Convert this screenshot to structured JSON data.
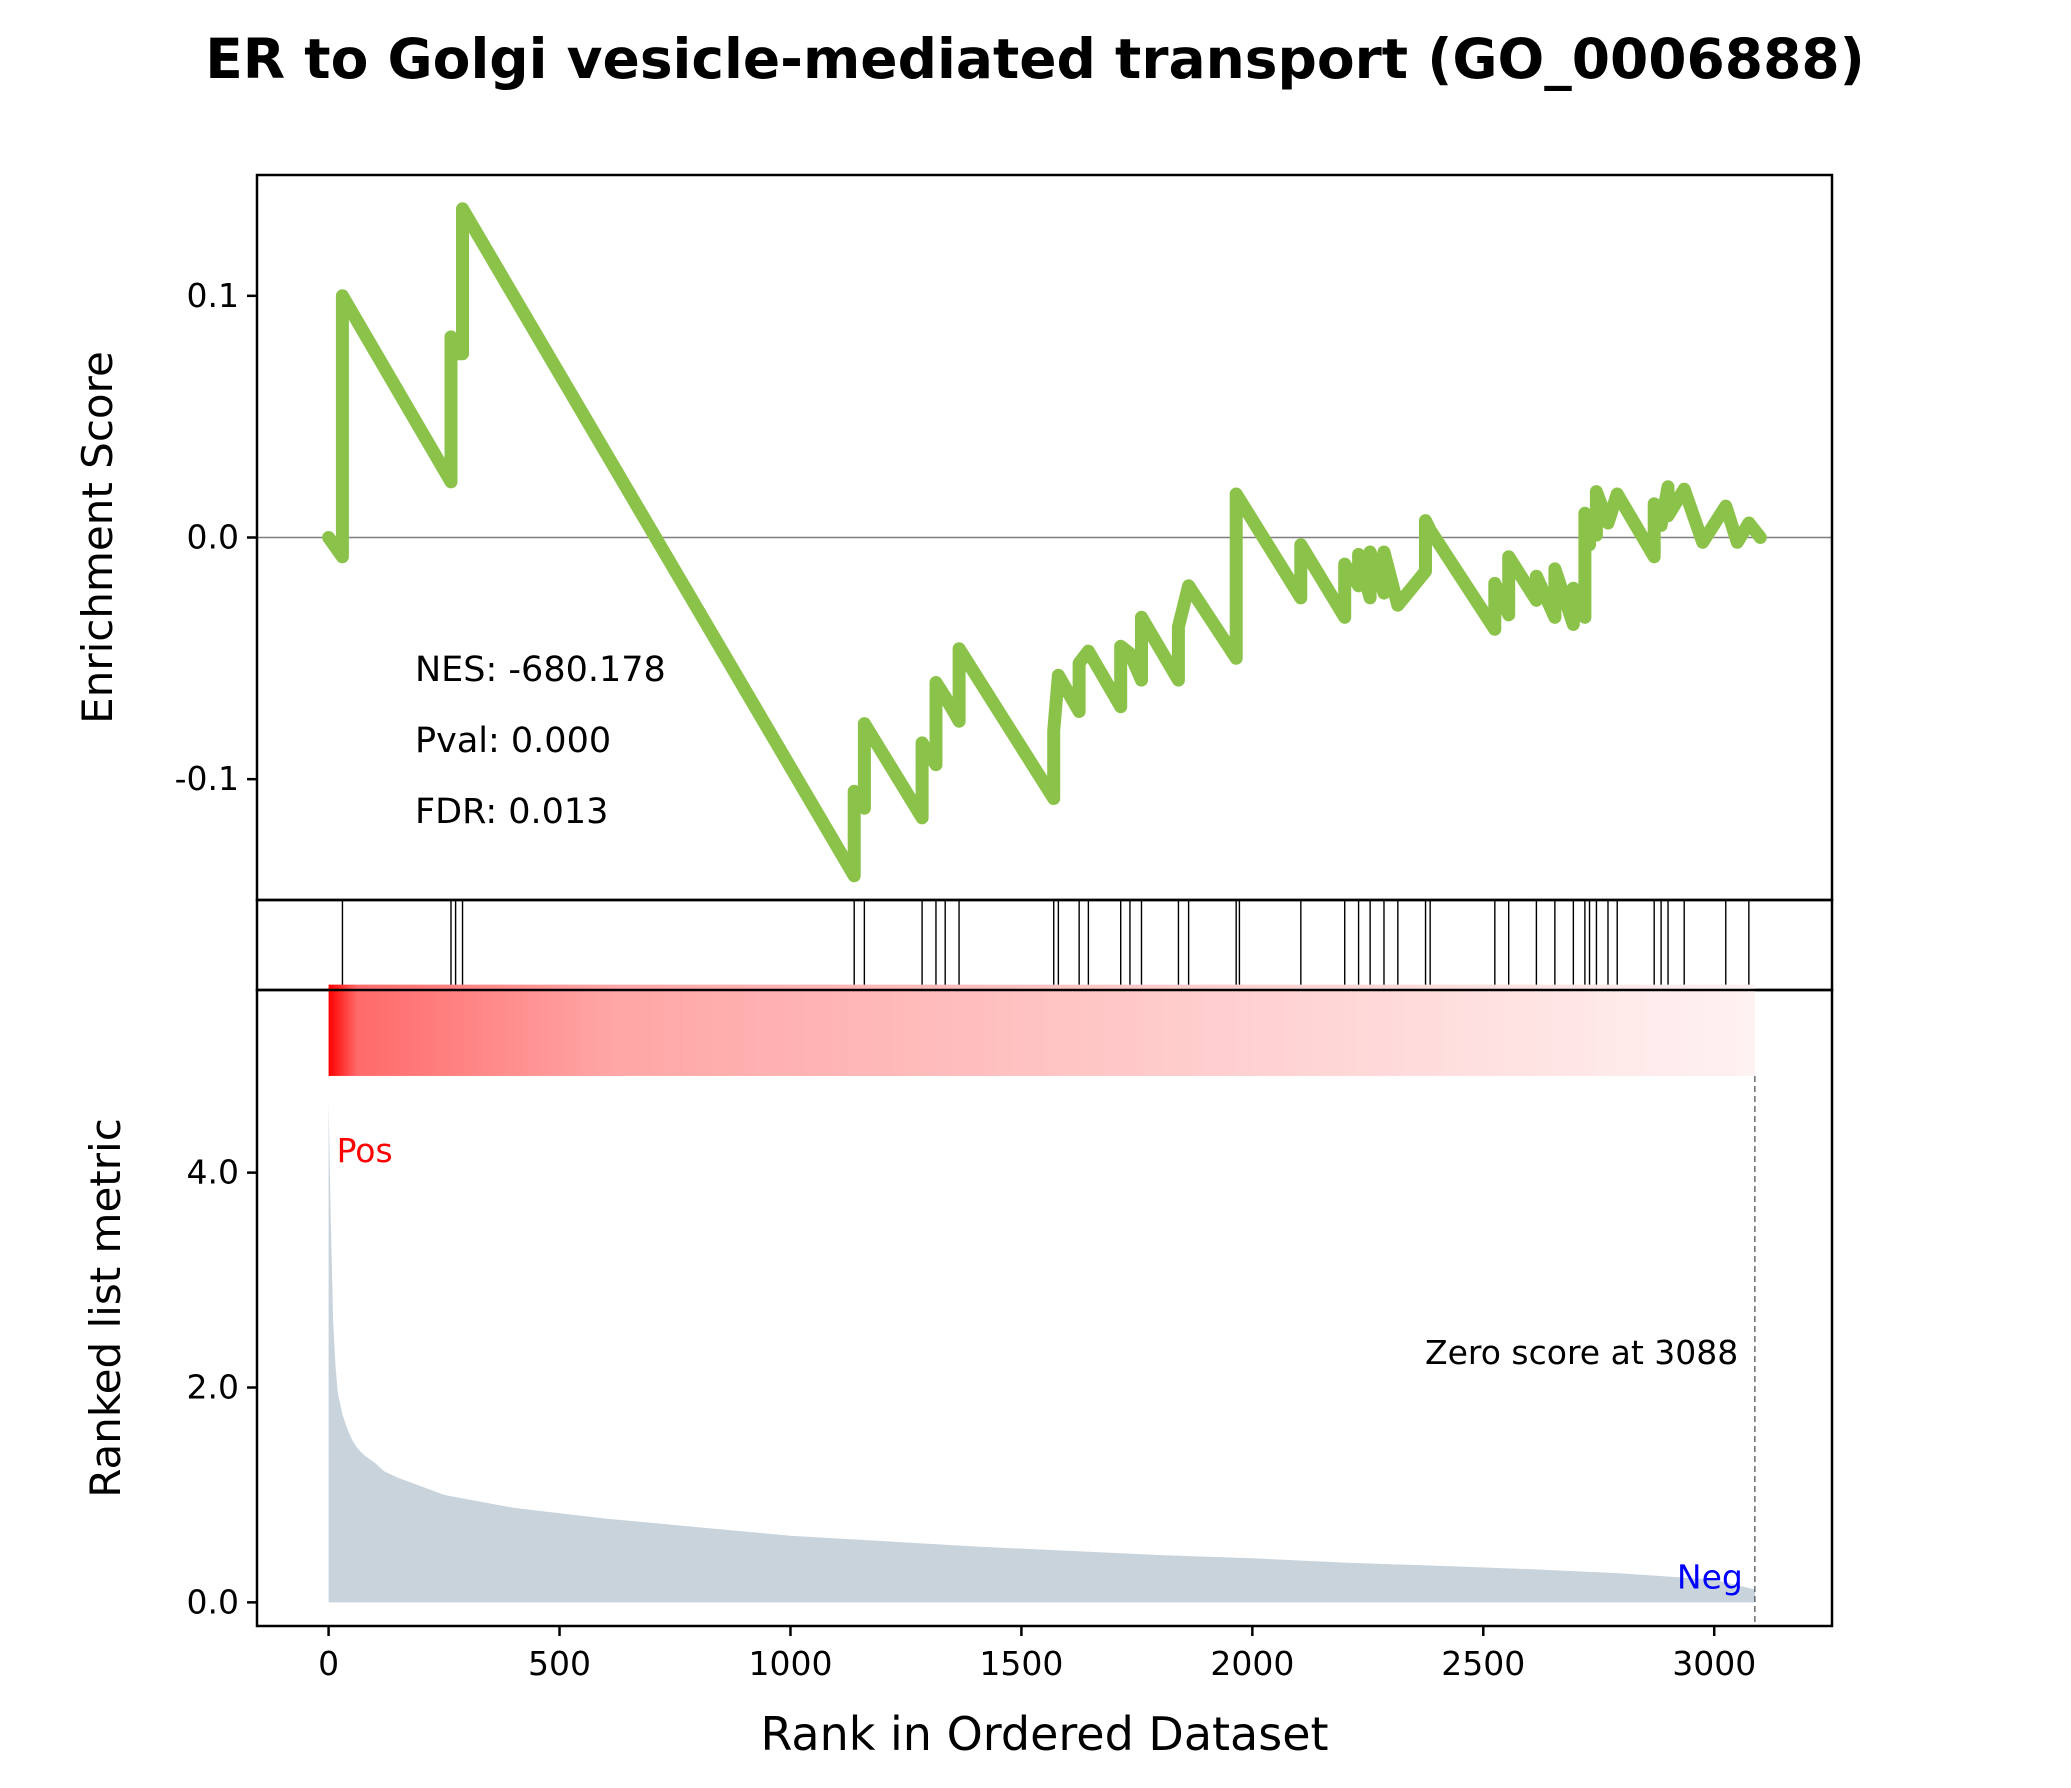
{
  "chart_data": {
    "type": "line",
    "title": "ER to Golgi vesicle-mediated transport (GO_0006888)",
    "xlabel": "Rank in Ordered Dataset",
    "xlim": [
      -155,
      3255
    ],
    "x_ticks": [
      0,
      500,
      1000,
      1500,
      2000,
      2500,
      3000
    ],
    "enrichment_panel": {
      "ylabel": "Enrichment Score",
      "ylim": [
        -0.15,
        0.15
      ],
      "y_ticks": [
        {
          "value": 0.1,
          "label": "0.1"
        },
        {
          "value": 0.0,
          "label": "0.0"
        },
        {
          "value": -0.1,
          "label": "-0.1"
        }
      ],
      "line_color": "#8bc34a",
      "zero_line_color": "#7f7f7f",
      "stats": [
        "NES: -680.178",
        "Pval: 0.000",
        "FDR: 0.013"
      ],
      "series": [
        {
          "x": [
            0,
            30,
            30,
            265,
            265,
            275,
            275,
            290,
            290,
            1138,
            1138,
            1160,
            1160,
            1285,
            1285,
            1315,
            1315,
            1335,
            1335,
            1365,
            1365,
            1570,
            1570,
            1580,
            1580,
            1625,
            1625,
            1645,
            1645,
            1715,
            1715,
            1735,
            1735,
            1760,
            1760,
            1840,
            1840,
            1862,
            1862,
            1965,
            1965,
            2105,
            2105,
            2200,
            2200,
            2230,
            2230,
            2255,
            2255,
            2285,
            2285,
            2315,
            2315,
            2375,
            2375,
            2385,
            2385,
            2525,
            2525,
            2555,
            2555,
            2615,
            2615,
            2655,
            2655,
            2695,
            2695,
            2720,
            2720,
            2730,
            2730,
            2745,
            2745,
            2770,
            2770,
            2790,
            2790,
            2870,
            2870,
            2885,
            2885,
            2900,
            2900,
            2935,
            2935,
            2975,
            2975,
            3025,
            3025,
            3050,
            3050,
            3075,
            3075,
            3100
          ],
          "y": [
            0,
            -0.008,
            0.1,
            0.023,
            0.083,
            0.08,
            0.076,
            0.076,
            0.136,
            -0.14,
            -0.105,
            -0.112,
            -0.077,
            -0.116,
            -0.085,
            -0.094,
            -0.06,
            -0.066,
            -0.066,
            -0.076,
            -0.046,
            -0.108,
            -0.08,
            -0.057,
            -0.057,
            -0.072,
            -0.052,
            -0.047,
            -0.047,
            -0.07,
            -0.045,
            -0.048,
            -0.048,
            -0.059,
            -0.033,
            -0.059,
            -0.037,
            -0.02,
            -0.02,
            -0.05,
            0.018,
            -0.025,
            -0.003,
            -0.033,
            -0.011,
            -0.02,
            -0.007,
            -0.025,
            -0.006,
            -0.023,
            -0.006,
            -0.028,
            -0.028,
            -0.014,
            0.007,
            0.003,
            0.003,
            -0.038,
            -0.019,
            -0.032,
            -0.008,
            -0.026,
            -0.016,
            -0.033,
            -0.013,
            -0.036,
            -0.021,
            -0.033,
            0.01,
            -0.003,
            0.004,
            0.001,
            0.019,
            0.006,
            0.006,
            0.018,
            0.018,
            -0.008,
            0.014,
            0.005,
            0.005,
            0.021,
            0.009,
            0.02,
            0.02,
            -0.002,
            -0.002,
            0.013,
            0.013,
            -0.002,
            -0.002,
            0.006,
            0.006,
            0.0
          ]
        }
      ]
    },
    "hits_panel": {
      "hit_ranks": [
        30,
        265,
        275,
        290,
        1138,
        1160,
        1285,
        1315,
        1335,
        1365,
        1570,
        1580,
        1625,
        1645,
        1715,
        1735,
        1760,
        1840,
        1862,
        1965,
        1972,
        2105,
        2200,
        2230,
        2255,
        2285,
        2315,
        2375,
        2385,
        2525,
        2555,
        2615,
        2655,
        2695,
        2720,
        2730,
        2745,
        2770,
        2790,
        2870,
        2885,
        2900,
        2935,
        3025,
        3075
      ]
    },
    "metric_panel": {
      "ylabel": "Ranked list metric",
      "ylim": [
        -0.22,
        5.7
      ],
      "y_ticks": [
        {
          "value": 0.0,
          "label": "0.0"
        },
        {
          "value": 2.0,
          "label": "2.0"
        },
        {
          "value": 4.0,
          "label": "4.0"
        }
      ],
      "fill_color": "#c8d3dc",
      "pos_label": "Pos",
      "pos_color": "#ff0000",
      "neg_label": "Neg",
      "neg_color": "#0000ff",
      "zero_cross_rank": 3088,
      "zero_cross_label": "Zero score at 3088",
      "heatmap_band": {
        "from_color": "#ff0000",
        "to_color": "#fff2f2",
        "y_range": [
          4.9,
          5.75
        ]
      },
      "series": [
        {
          "x": [
            0,
            5,
            10,
            15,
            20,
            30,
            40,
            50,
            60,
            70,
            80,
            100,
            120,
            150,
            200,
            250,
            300,
            400,
            500,
            600,
            700,
            800,
            900,
            1000,
            1200,
            1400,
            1600,
            1800,
            2000,
            2200,
            2400,
            2600,
            2800,
            3000,
            3088
          ],
          "y": [
            4.65,
            3.5,
            2.6,
            2.2,
            1.95,
            1.75,
            1.62,
            1.52,
            1.45,
            1.4,
            1.36,
            1.3,
            1.22,
            1.16,
            1.08,
            1.0,
            0.96,
            0.88,
            0.83,
            0.78,
            0.74,
            0.7,
            0.66,
            0.62,
            0.57,
            0.52,
            0.48,
            0.44,
            0.41,
            0.37,
            0.34,
            0.31,
            0.27,
            0.21,
            0.12
          ]
        }
      ]
    }
  }
}
